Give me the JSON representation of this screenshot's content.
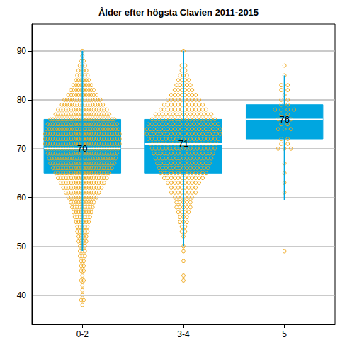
{
  "chart_data": {
    "type": "boxplot",
    "title": "Ålder efter högsta Clavien 2011-2015",
    "categories": [
      "0-2",
      "3-4",
      "5"
    ],
    "ylim": [
      34,
      95.5
    ],
    "yticks": [
      40,
      50,
      60,
      70,
      80,
      90
    ],
    "grid": true,
    "data_labels": true,
    "series": [
      {
        "type": "boxplot",
        "color": "#00a6e0",
        "values": [
          [
            49,
            65,
            70,
            76,
            90
          ],
          [
            50,
            65,
            71,
            76,
            90
          ],
          [
            59.5,
            72,
            76,
            79,
            85
          ]
        ]
      },
      {
        "type": "scatter",
        "marker": "circle",
        "color": "#f0a81c",
        "values": [
          [
            [
              38,
              1
            ],
            [
              39,
              2
            ],
            [
              40,
              1
            ],
            [
              41,
              1
            ],
            [
              42,
              1
            ],
            [
              43,
              2
            ],
            [
              44,
              1
            ],
            [
              45,
              2
            ],
            [
              46,
              2
            ],
            [
              47,
              2
            ],
            [
              48,
              3
            ],
            [
              49,
              3
            ],
            [
              50,
              3
            ],
            [
              51,
              4
            ],
            [
              52,
              4
            ],
            [
              53,
              5
            ],
            [
              54,
              5
            ],
            [
              55,
              6
            ],
            [
              56,
              7
            ],
            [
              57,
              8
            ],
            [
              58,
              9
            ],
            [
              59,
              10
            ],
            [
              60,
              12
            ],
            [
              61,
              14
            ],
            [
              62,
              16
            ],
            [
              63,
              18
            ],
            [
              64,
              20
            ],
            [
              65,
              22
            ],
            [
              66,
              24
            ],
            [
              67,
              26
            ],
            [
              68,
              27
            ],
            [
              69,
              28
            ],
            [
              70,
              29
            ],
            [
              71,
              30
            ],
            [
              72,
              30
            ],
            [
              73,
              30
            ],
            [
              74,
              29
            ],
            [
              75,
              28
            ],
            [
              76,
              26
            ],
            [
              77,
              22
            ],
            [
              78,
              20
            ],
            [
              79,
              17
            ],
            [
              80,
              15
            ],
            [
              81,
              12
            ],
            [
              82,
              10
            ],
            [
              83,
              8
            ],
            [
              84,
              6
            ],
            [
              85,
              5
            ],
            [
              86,
              4
            ],
            [
              87,
              3
            ],
            [
              88,
              2
            ],
            [
              89,
              1
            ],
            [
              90,
              1
            ]
          ],
          [
            [
              43,
              1
            ],
            [
              44,
              1
            ],
            [
              47,
              1
            ],
            [
              49,
              1
            ],
            [
              50,
              1
            ],
            [
              52,
              1
            ],
            [
              53,
              2
            ],
            [
              54,
              2
            ],
            [
              55,
              3
            ],
            [
              56,
              3
            ],
            [
              57,
              4
            ],
            [
              58,
              5
            ],
            [
              59,
              5
            ],
            [
              60,
              6
            ],
            [
              61,
              8
            ],
            [
              62,
              8
            ],
            [
              63,
              10
            ],
            [
              64,
              12
            ],
            [
              65,
              14
            ],
            [
              66,
              15
            ],
            [
              67,
              16
            ],
            [
              68,
              17
            ],
            [
              69,
              18
            ],
            [
              70,
              19
            ],
            [
              71,
              20
            ],
            [
              72,
              21
            ],
            [
              73,
              22
            ],
            [
              74,
              22
            ],
            [
              75,
              21
            ],
            [
              76,
              19
            ],
            [
              77,
              17
            ],
            [
              78,
              14
            ],
            [
              79,
              12
            ],
            [
              80,
              10
            ],
            [
              81,
              8
            ],
            [
              82,
              6
            ],
            [
              83,
              5
            ],
            [
              84,
              4
            ],
            [
              85,
              3
            ],
            [
              86,
              2
            ],
            [
              87,
              2
            ],
            [
              90,
              1
            ]
          ],
          [
            [
              49,
              1
            ],
            [
              61,
              1
            ],
            [
              63,
              1
            ],
            [
              65,
              1
            ],
            [
              67,
              1
            ],
            [
              70,
              3
            ],
            [
              71,
              2
            ],
            [
              72,
              2
            ],
            [
              74,
              3
            ],
            [
              75,
              2
            ],
            [
              76,
              3
            ],
            [
              77,
              2
            ],
            [
              78,
              4
            ],
            [
              79,
              2
            ],
            [
              80,
              2
            ],
            [
              81,
              1
            ],
            [
              82,
              2
            ],
            [
              83,
              2
            ],
            [
              85,
              1
            ],
            [
              87,
              1
            ]
          ]
        ]
      }
    ]
  }
}
